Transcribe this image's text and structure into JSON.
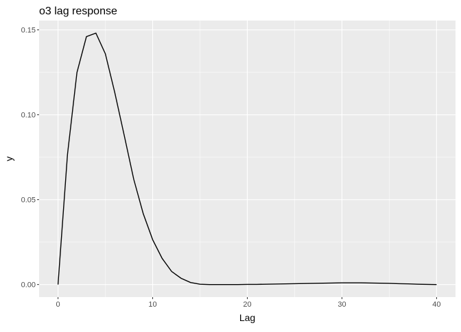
{
  "chart_data": {
    "type": "line",
    "title": "o3 lag response",
    "xlabel": "Lag",
    "ylabel": "y",
    "xlim": [
      -2,
      42
    ],
    "ylim": [
      -0.0074,
      0.1555
    ],
    "grid": true,
    "x_ticks": [
      0,
      10,
      20,
      30,
      40
    ],
    "x_tick_labels": [
      "0",
      "10",
      "20",
      "30",
      "40"
    ],
    "y_ticks": [
      0,
      0.05,
      0.1,
      0.15
    ],
    "y_tick_labels": [
      "0.00",
      "0.05",
      "0.10",
      "0.15"
    ],
    "x": [
      0,
      1,
      2,
      3,
      4,
      5,
      6,
      7,
      8,
      9,
      10,
      11,
      12,
      13,
      14,
      15,
      16,
      17,
      18,
      19,
      20,
      21,
      22,
      23,
      24,
      25,
      26,
      27,
      28,
      29,
      30,
      31,
      32,
      33,
      34,
      35,
      36,
      37,
      38,
      39,
      40
    ],
    "y": [
      0,
      0.0767,
      0.1249,
      0.146,
      0.1481,
      0.1359,
      0.113,
      0.0877,
      0.062,
      0.0418,
      0.0264,
      0.0154,
      0.0077,
      0.0037,
      0.0012,
      0.0002,
      0.0,
      0.0,
      0.0,
      0.0,
      0.0001,
      0.0001,
      0.0002,
      0.0003,
      0.0004,
      0.0005,
      0.0006,
      0.0007,
      0.0008,
      0.0009,
      0.001,
      0.001,
      0.001,
      0.0009,
      0.0008,
      0.0007,
      0.0005,
      0.0004,
      0.0002,
      0.0001,
      0.0
    ],
    "colors": {
      "panel": "#EBEBEB",
      "grid": "#FFFFFF",
      "line": "#000000",
      "text": "#4D4D4D"
    }
  }
}
